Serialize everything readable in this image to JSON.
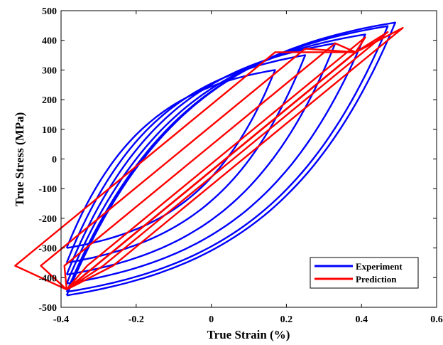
{
  "chart_data": {
    "type": "line",
    "title": "",
    "xlabel": "True Strain (%)",
    "ylabel": "True Stress (MPa)",
    "xlim": [
      -0.4,
      0.6
    ],
    "ylim": [
      -500,
      500
    ],
    "xticks": [
      -0.4,
      -0.2,
      0,
      0.2,
      0.4,
      0.6
    ],
    "xtick_labels": [
      "-0.4",
      "-0.2",
      "0",
      "0.2",
      "0.4",
      "0.6"
    ],
    "yticks": [
      -500,
      -400,
      -300,
      -200,
      -100,
      0,
      100,
      200,
      300,
      400,
      500
    ],
    "ytick_labels": [
      "-500",
      "-400",
      "-300",
      "-200",
      "-100",
      "0",
      "100",
      "200",
      "300",
      "400",
      "500"
    ],
    "grid": false,
    "legend": "bottom-right",
    "series": [
      {
        "name": "Experiment",
        "color": "#0000ff",
        "cycles": [
          {
            "amp": 0.17,
            "smax": 300
          },
          {
            "amp": 0.25,
            "smax": 350
          },
          {
            "amp": 0.33,
            "smax": 390
          },
          {
            "amp": 0.41,
            "smax": 420
          },
          {
            "amp": 0.47,
            "smax": 448
          },
          {
            "amp": 0.49,
            "smax": 460
          }
        ]
      },
      {
        "name": "Prediction",
        "color": "#ff0000",
        "cycles": [
          {
            "amp": 0.17,
            "smax": 360
          },
          {
            "amp": 0.25,
            "smax": 372
          },
          {
            "amp": 0.33,
            "smax": 390
          },
          {
            "amp": 0.41,
            "smax": 410
          },
          {
            "amp": 0.47,
            "smax": 428
          },
          {
            "amp": 0.51,
            "smax": 442
          }
        ]
      }
    ]
  }
}
